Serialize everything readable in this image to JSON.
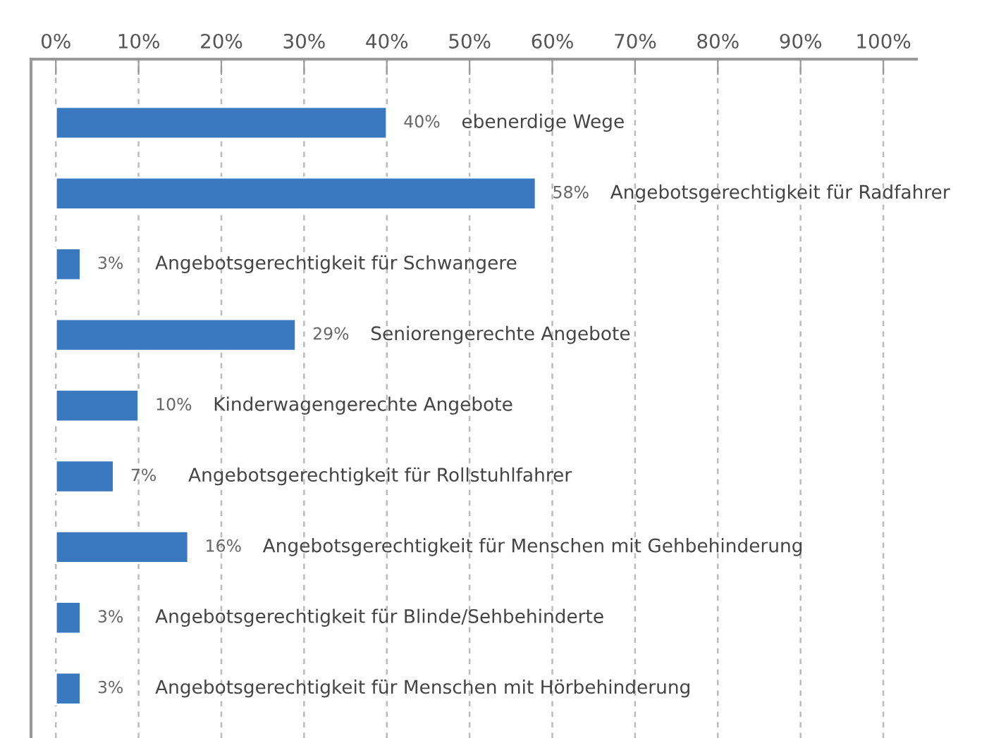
{
  "chart_data": {
    "type": "bar",
    "orientation": "horizontal",
    "categories": [
      "ebenerdige Wege",
      "Angebotsgerechtigkeit für Radfahrer",
      "Angebotsgerechtigkeit für Schwangere",
      "Seniorengerechte Angebote",
      "Kinderwagengerechte Angebote",
      "Angebotsgerechtigkeit für Rollstuhlfahrer",
      "Angebotsgerechtigkeit für Menschen mit Gehbehinderung",
      "Angebotsgerechtigkeit für Blinde/Sehbehinderte",
      "Angebotsgerechtigkeit für Menschen mit Hörbehinderung"
    ],
    "values": [
      40,
      58,
      3,
      29,
      10,
      7,
      16,
      3,
      3
    ],
    "value_labels": [
      "40%",
      "58%",
      "3%",
      "29%",
      "10%",
      "7%",
      "16%",
      "3%",
      "3%"
    ],
    "color": "#3a78bf",
    "xlim": [
      -3,
      104
    ],
    "xticks": [
      {
        "value": 0,
        "label": "0%"
      },
      {
        "value": 10,
        "label": "10%"
      },
      {
        "value": 20,
        "label": "20%"
      },
      {
        "value": 30,
        "label": "30%"
      },
      {
        "value": 40,
        "label": "40%"
      },
      {
        "value": 50,
        "label": "50%"
      },
      {
        "value": 60,
        "label": "60%"
      },
      {
        "value": 70,
        "label": "70%"
      },
      {
        "value": 80,
        "label": "80%"
      },
      {
        "value": 90,
        "label": "90%"
      },
      {
        "value": 100,
        "label": "100%"
      }
    ],
    "grid": "x",
    "tick_labels": "x"
  }
}
